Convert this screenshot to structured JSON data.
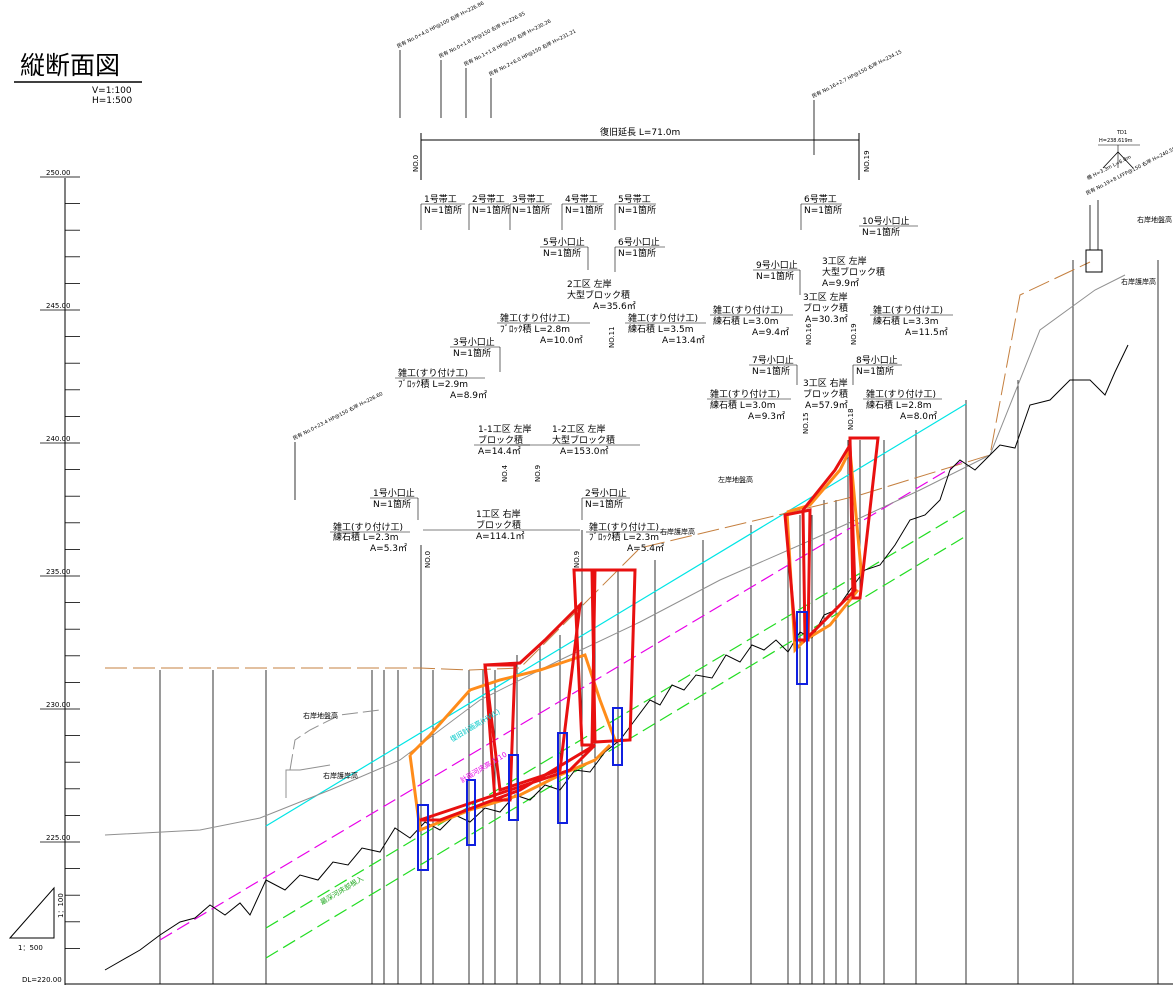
{
  "title": "縦断面図",
  "scale_v": "V=1:100",
  "scale_h": "H=1:500",
  "y_axis": {
    "ticks": [
      {
        "value": 250,
        "label": "250.00"
      },
      {
        "value": 245,
        "label": "245.00"
      },
      {
        "value": 240,
        "label": "240.00"
      },
      {
        "value": 235,
        "label": "235.00"
      },
      {
        "value": 230,
        "label": "230.00"
      },
      {
        "value": 225,
        "label": "225.00"
      }
    ],
    "datum": "DL=220.00"
  },
  "ratio": {
    "h": "1：500",
    "v": "1：100"
  },
  "restoration_length": "復旧延長 L=71.0m",
  "station_labels": {
    "no0_top": "NO.0",
    "no19_top": "NO.19",
    "no0": "NO.0",
    "no4": "NO.4",
    "no9a": "NO.9",
    "no9b": "NO.9",
    "no11": "NO.11",
    "no15": "NO.15",
    "no16": "NO.16",
    "no18": "NO.18",
    "no19": "NO.19"
  },
  "belts": [
    {
      "name": "1号帯工",
      "count": "N=1箇所"
    },
    {
      "name": "2号帯工",
      "count": "N=1箇所"
    },
    {
      "name": "3号帯工",
      "count": "N=1箇所"
    },
    {
      "name": "4号帯工",
      "count": "N=1箇所"
    },
    {
      "name": "5号帯工",
      "count": "N=1箇所"
    },
    {
      "name": "6号帯工",
      "count": "N=1箇所"
    }
  ],
  "stops": [
    {
      "name": "1号小口止",
      "count": "N=1箇所"
    },
    {
      "name": "2号小口止",
      "count": "N=1箇所"
    },
    {
      "name": "3号小口止",
      "count": "N=1箇所"
    },
    {
      "name": "5号小口止",
      "count": "N=1箇所"
    },
    {
      "name": "6号小口止",
      "count": "N=1箇所"
    },
    {
      "name": "7号小口止",
      "count": "N=1箇所"
    },
    {
      "name": "8号小口止",
      "count": "N=1箇所"
    },
    {
      "name": "9号小口止",
      "count": "N=1箇所"
    },
    {
      "name": "10号小口止",
      "count": "N=1箇所"
    }
  ],
  "sections": [
    {
      "name": "1工区 右岸",
      "type": "ブロック積",
      "area": "A=114.1㎡"
    },
    {
      "name": "1-1工区 左岸",
      "type": "ブロック積",
      "area": "A=14.4㎡"
    },
    {
      "name": "1-2工区 左岸",
      "type": "大型ブロック積",
      "area": "A=153.0㎡"
    },
    {
      "name": "2工区 左岸",
      "type": "大型ブロック積",
      "area": "A=35.6㎡"
    },
    {
      "name": "3工区 右岸",
      "type": "ブロック積",
      "area": "A=57.9㎡"
    },
    {
      "name": "3工区 左岸",
      "type": "ブロック積",
      "area": "A=30.3㎡"
    },
    {
      "name": "3工区 左岸",
      "type": "大型ブロック積",
      "area": "A=9.9㎡"
    }
  ],
  "misc": [
    {
      "name": "雑工(すり付け工)",
      "spec": "練石積 L=2.3m",
      "area": "A=5.3㎡"
    },
    {
      "name": "雑工(すり付け工)",
      "spec": "ﾌﾞﾛｯｸ積 L=2.3m",
      "area": "A=5.4㎡"
    },
    {
      "name": "雑工(すり付け工)",
      "spec": "ﾌﾞﾛｯｸ積 L=2.9m",
      "area": "A=8.9㎡"
    },
    {
      "name": "雑工(すり付け工)",
      "spec": "ﾌﾞﾛｯｸ積 L=2.8m",
      "area": "A=10.0㎡"
    },
    {
      "name": "雑工(すり付け工)",
      "spec": "練石積 L=3.5m",
      "area": "A=13.4㎡"
    },
    {
      "name": "雑工(すり付け工)",
      "spec": "練石積 L=3.0m",
      "area": "A=9.4㎡"
    },
    {
      "name": "雑工(すり付け工)",
      "spec": "練石積 L=3.3m",
      "area": "A=11.5㎡"
    },
    {
      "name": "雑工(すり付け工)",
      "spec": "練石積 L=3.0m",
      "area": "A=9.3㎡"
    },
    {
      "name": "雑工(すり付け工)",
      "spec": "練石積 L=2.8m",
      "area": "A=8.0㎡"
    }
  ],
  "bank_labels": {
    "right_ground_left": "右岸地盤高",
    "right_bank_left": "右岸護岸高",
    "left_ground_mid": "左岸地盤高",
    "right_bank_mid": "右岸護岸高",
    "right_ground_right": "右岸地盤高",
    "right_bank_right": "右岸護岸高"
  },
  "line_labels": {
    "cyan": "復旧計画高(HWL)",
    "magenta": "計画河床高 1/10",
    "green": "最深河床部根入"
  },
  "benchmark": {
    "name": "TD1",
    "height": "H=238.619m"
  },
  "survey_notes": [
    "民有 No.0+4.0 HP@100 右岸 H=226.86",
    "民有 No.0+1.8 FP@150 右岸 H=226.95",
    "民有 No.1+1.8 HP@150 右岸 H=230.26",
    "民有 No.2+6.0 HP@150 右岸 H=231.21",
    "民有 No.16+2.7 HP@150 右岸 H=234.15",
    "民有 No.0+23.4 HP@150 右岸 H=226.60",
    "民有 No.19+8 LFFP@150 右岸 H=240.59",
    "橋 H=3.3m L=6.0m"
  ],
  "colors": {
    "cyan": "#00e5e5",
    "magenta": "#e800e8",
    "green": "#22dd22",
    "red": "#e81010",
    "orange": "#ff8c1a",
    "brown": "#c58040",
    "gray": "#909090",
    "blue": "#1020e0"
  }
}
